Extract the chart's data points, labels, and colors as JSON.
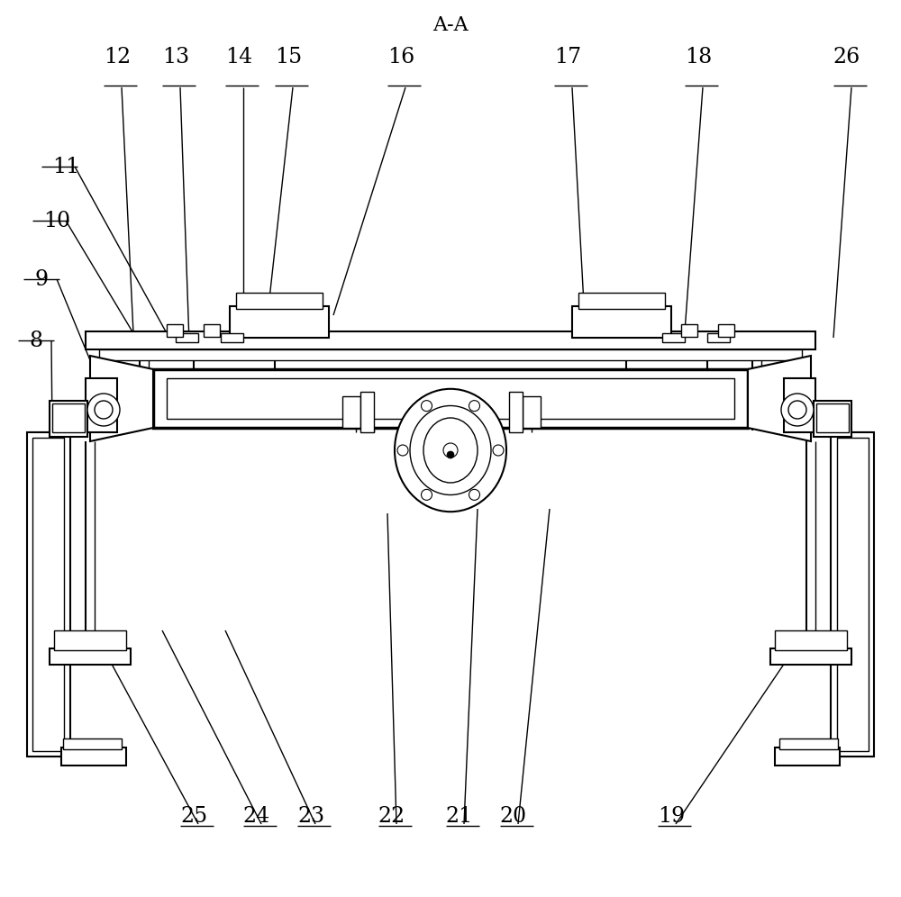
{
  "title": "A-A",
  "background_color": "#ffffff",
  "line_color": "#000000",
  "figsize": [
    10.0,
    9.96
  ],
  "dpi": 100
}
